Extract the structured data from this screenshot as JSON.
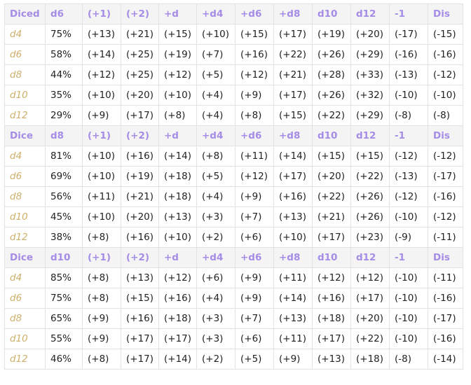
{
  "columns_rest": [
    "(+1)",
    "(+2)",
    "+d",
    "+d4",
    "+d6",
    "+d8",
    "d10",
    "d12",
    "-1",
    "Dis"
  ],
  "sections": [
    {
      "header": [
        "Diced",
        "d6"
      ],
      "rows": [
        [
          "d4",
          "75%",
          "(+13)",
          "(+21)",
          "(+15)",
          "(+10)",
          "(+15)",
          "(+17)",
          "(+19)",
          "(+20)",
          "(-17)",
          "(-15)"
        ],
        [
          "d6",
          "58%",
          "(+14)",
          "(+25)",
          "(+19)",
          "(+7)",
          "(+16)",
          "(+22)",
          "(+26)",
          "(+29)",
          "(-16)",
          "(-16)"
        ],
        [
          "d8",
          "44%",
          "(+12)",
          "(+25)",
          "(+12)",
          "(+5)",
          "(+12)",
          "(+21)",
          "(+28)",
          "(+33)",
          "(-13)",
          "(-12)"
        ],
        [
          "d10",
          "35%",
          "(+10)",
          "(+20)",
          "(+10)",
          "(+4)",
          "(+9)",
          "(+17)",
          "(+26)",
          "(+32)",
          "(-10)",
          "(-10)"
        ],
        [
          "d12",
          "29%",
          "(+9)",
          "(+17)",
          "(+8)",
          "(+4)",
          "(+8)",
          "(+15)",
          "(+22)",
          "(+29)",
          "(-8)",
          "(-8)"
        ]
      ]
    },
    {
      "header": [
        "Dice",
        "d8"
      ],
      "rows": [
        [
          "d4",
          "81%",
          "(+10)",
          "(+16)",
          "(+14)",
          "(+8)",
          "(+11)",
          "(+14)",
          "(+15)",
          "(+15)",
          "(-12)",
          "(-12)"
        ],
        [
          "d6",
          "69%",
          "(+10)",
          "(+19)",
          "(+18)",
          "(+5)",
          "(+12)",
          "(+17)",
          "(+20)",
          "(+22)",
          "(-13)",
          "(-17)"
        ],
        [
          "d8",
          "56%",
          "(+11)",
          "(+21)",
          "(+18)",
          "(+4)",
          "(+9)",
          "(+16)",
          "(+22)",
          "(+26)",
          "(-12)",
          "(-16)"
        ],
        [
          "d10",
          "45%",
          "(+10)",
          "(+20)",
          "(+13)",
          "(+3)",
          "(+7)",
          "(+13)",
          "(+21)",
          "(+26)",
          "(-10)",
          "(-12)"
        ],
        [
          "d12",
          "38%",
          "(+8)",
          "(+16)",
          "(+10)",
          "(+2)",
          "(+6)",
          "(+10)",
          "(+17)",
          "(+23)",
          "(-9)",
          "(-11)"
        ]
      ]
    },
    {
      "header": [
        "Dice",
        "d10"
      ],
      "rows": [
        [
          "d4",
          "85%",
          "(+8)",
          "(+13)",
          "(+12)",
          "(+6)",
          "(+9)",
          "(+11)",
          "(+12)",
          "(+12)",
          "(-10)",
          "(-11)"
        ],
        [
          "d6",
          "75%",
          "(+8)",
          "(+15)",
          "(+16)",
          "(+4)",
          "(+9)",
          "(+14)",
          "(+16)",
          "(+17)",
          "(-10)",
          "(-16)"
        ],
        [
          "d8",
          "65%",
          "(+9)",
          "(+16)",
          "(+18)",
          "(+3)",
          "(+7)",
          "(+13)",
          "(+18)",
          "(+20)",
          "(-10)",
          "(-17)"
        ],
        [
          "d10",
          "55%",
          "(+9)",
          "(+17)",
          "(+17)",
          "(+3)",
          "(+6)",
          "(+11)",
          "(+17)",
          "(+22)",
          "(-10)",
          "(-16)"
        ],
        [
          "d12",
          "46%",
          "(+8)",
          "(+17)",
          "(+14)",
          "(+2)",
          "(+5)",
          "(+9)",
          "(+13)",
          "(+18)",
          "(-8)",
          "(-14)"
        ]
      ]
    }
  ]
}
